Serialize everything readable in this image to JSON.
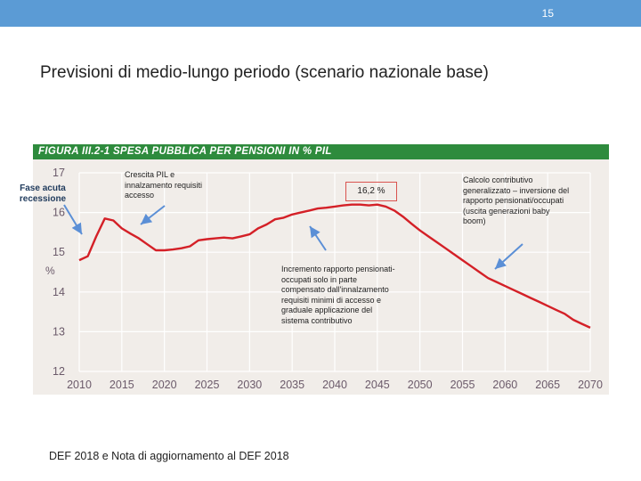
{
  "header": {
    "page_number": "15",
    "accent_color": "#5b9bd5"
  },
  "slide_title": "Previsioni di medio-lungo periodo (scenario nazionale base)",
  "annotations": {
    "recession": "Fase acuta recessione",
    "gdp_growth": "Crescita PIL e innalzamento requisiti accesso",
    "peak": "16,2 %",
    "increase": "Incremento rapporto pensionati- occupati solo in parte compensato dall'innalzamento requisiti minimi di accesso e graduale applicazione del sistema contributivo",
    "contributory": "Calcolo contributivo generalizzato – inversione del rapporto pensionati/occupati (uscita generazioni baby boom)"
  },
  "source": "DEF 2018 e Nota di aggiornamento al DEF 2018",
  "chart_data": {
    "type": "line",
    "title": "FIGURA III.2-1 SPESA PUBBLICA PER PENSIONI IN % PIL",
    "ylabel": "%",
    "xlabel": "",
    "xlim": [
      2010,
      2070
    ],
    "ylim": [
      12,
      17
    ],
    "x_ticks": [
      "2010",
      "2015",
      "2020",
      "2025",
      "2030",
      "2035",
      "2040",
      "2045",
      "2050",
      "2055",
      "2060",
      "2065",
      "2070"
    ],
    "y_ticks": [
      "12",
      "13",
      "14",
      "15",
      "16",
      "17"
    ],
    "grid": true,
    "line_color": "#d42027",
    "series": [
      {
        "name": "Spesa pubblica per pensioni (% PIL)",
        "x": [
          2010,
          2011,
          2012,
          2013,
          2014,
          2015,
          2016,
          2017,
          2018,
          2019,
          2020,
          2021,
          2022,
          2023,
          2024,
          2025,
          2026,
          2027,
          2028,
          2029,
          2030,
          2031,
          2032,
          2033,
          2034,
          2035,
          2036,
          2037,
          2038,
          2039,
          2040,
          2041,
          2042,
          2043,
          2044,
          2045,
          2046,
          2047,
          2048,
          2049,
          2050,
          2051,
          2052,
          2053,
          2054,
          2055,
          2056,
          2057,
          2058,
          2059,
          2060,
          2061,
          2062,
          2063,
          2064,
          2065,
          2066,
          2067,
          2068,
          2069,
          2070
        ],
        "values": [
          14.8,
          14.9,
          15.4,
          15.85,
          15.8,
          15.6,
          15.47,
          15.35,
          15.2,
          15.05,
          15.05,
          15.07,
          15.1,
          15.15,
          15.3,
          15.33,
          15.35,
          15.37,
          15.35,
          15.4,
          15.45,
          15.6,
          15.7,
          15.83,
          15.87,
          15.95,
          16.0,
          16.05,
          16.1,
          16.12,
          16.15,
          16.18,
          16.2,
          16.2,
          16.18,
          16.2,
          16.15,
          16.05,
          15.9,
          15.72,
          15.55,
          15.4,
          15.25,
          15.1,
          14.95,
          14.8,
          14.65,
          14.5,
          14.35,
          14.25,
          14.15,
          14.05,
          13.95,
          13.85,
          13.75,
          13.65,
          13.55,
          13.45,
          13.3,
          13.2,
          13.1
        ]
      }
    ]
  }
}
